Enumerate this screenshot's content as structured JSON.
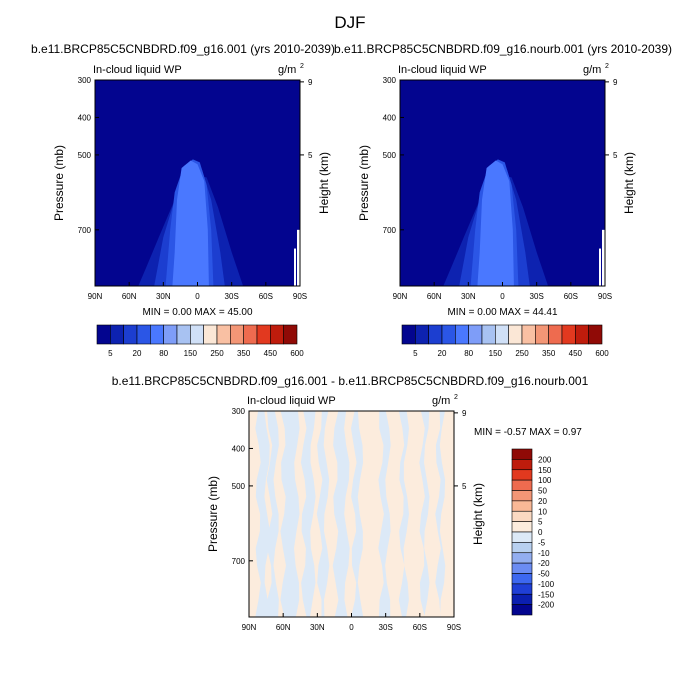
{
  "figure_title": "DJF",
  "chart_data": [
    {
      "type": "contour",
      "title": "b.e11.BRCP85C5CNBDRD.f09_g16.001 (yrs 2010-2039)",
      "variable": "In-cloud liquid WP",
      "units": "g/m",
      "units_exp": "2",
      "ylabel": "Pressure (mb)",
      "ylabel_right": "Height (km)",
      "x_ticks": [
        "90N",
        "60N",
        "30N",
        "0",
        "30S",
        "60S",
        "90S"
      ],
      "y_ticks": [
        "300",
        "400",
        "500",
        "700"
      ],
      "y_ticks_right": [
        "9",
        "5"
      ],
      "ylim": [
        300,
        850
      ],
      "levels": [
        5,
        10,
        20,
        40,
        80,
        120,
        150,
        200,
        250,
        300,
        350,
        400,
        450,
        500,
        600
      ],
      "colorbar_labels": [
        "5",
        "20",
        "80",
        "150",
        "250",
        "350",
        "450",
        "600"
      ],
      "min_max_label": "MIN =   0.00   MAX =  45.00",
      "min": 0.0,
      "max": 45.0
    },
    {
      "type": "contour",
      "title": "b.e11.BRCP85C5CNBDRD.f09_g16.nourb.001 (yrs 2010-2039)",
      "variable": "In-cloud liquid WP",
      "units": "g/m",
      "units_exp": "2",
      "ylabel": "Pressure (mb)",
      "ylabel_right": "Height (km)",
      "x_ticks": [
        "90N",
        "60N",
        "30N",
        "0",
        "30S",
        "60S",
        "90S"
      ],
      "y_ticks": [
        "300",
        "400",
        "500",
        "700"
      ],
      "y_ticks_right": [
        "9",
        "5"
      ],
      "ylim": [
        300,
        850
      ],
      "levels": [
        5,
        10,
        20,
        40,
        80,
        120,
        150,
        200,
        250,
        300,
        350,
        400,
        450,
        500,
        600
      ],
      "colorbar_labels": [
        "5",
        "20",
        "80",
        "150",
        "250",
        "350",
        "450",
        "600"
      ],
      "min_max_label": "MIN =   0.00   MAX =  44.41",
      "min": 0.0,
      "max": 44.41
    },
    {
      "type": "contour-difference",
      "title": "b.e11.BRCP85C5CNBDRD.f09_g16.001 - b.e11.BRCP85C5CNBDRD.f09_g16.nourb.001",
      "variable": "In-cloud liquid WP",
      "units": "g/m",
      "units_exp": "2",
      "ylabel": "Pressure (mb)",
      "ylabel_right": "Height (km)",
      "x_ticks": [
        "90N",
        "60N",
        "30N",
        "0",
        "30S",
        "60S",
        "90S"
      ],
      "y_ticks": [
        "300",
        "400",
        "500",
        "700"
      ],
      "y_ticks_right": [
        "9",
        "5"
      ],
      "ylim": [
        300,
        850
      ],
      "levels": [
        -200,
        -150,
        -100,
        -50,
        -20,
        -10,
        -5,
        0,
        5,
        10,
        20,
        50,
        100,
        150,
        200
      ],
      "colorbar_labels": [
        "200",
        "150",
        "100",
        "50",
        "20",
        "10",
        "5",
        "0",
        "-5",
        "-10",
        "-20",
        "-50",
        "-100",
        "-150",
        "-200"
      ],
      "min_max_label": "MIN =  -0.57   MAX =   0.97",
      "min": -0.57,
      "max": 0.97
    }
  ],
  "colors": {
    "seq": [
      "#03058f",
      "#0d22b0",
      "#1c3ed0",
      "#2b56e6",
      "#4a78ff",
      "#7e9df8",
      "#a8c2f2",
      "#d0e0f7",
      "#fbe7d6",
      "#f9c0a3",
      "#f39676",
      "#ee6b4f",
      "#e2391f",
      "#bf1c0c",
      "#900a06"
    ],
    "div": [
      "#900a06",
      "#be1c0c",
      "#e2391f",
      "#ee6b4f",
      "#f39676",
      "#f9b896",
      "#fad9c2",
      "#fcecdd",
      "#dce9f7",
      "#b8d0f0",
      "#93aef0",
      "#6b8cf3",
      "#3d68f0",
      "#1f3fd6",
      "#0b1fb0",
      "#03058f"
    ],
    "pos_fill": "#fcecdd",
    "neg_fill": "#dce9f7"
  }
}
